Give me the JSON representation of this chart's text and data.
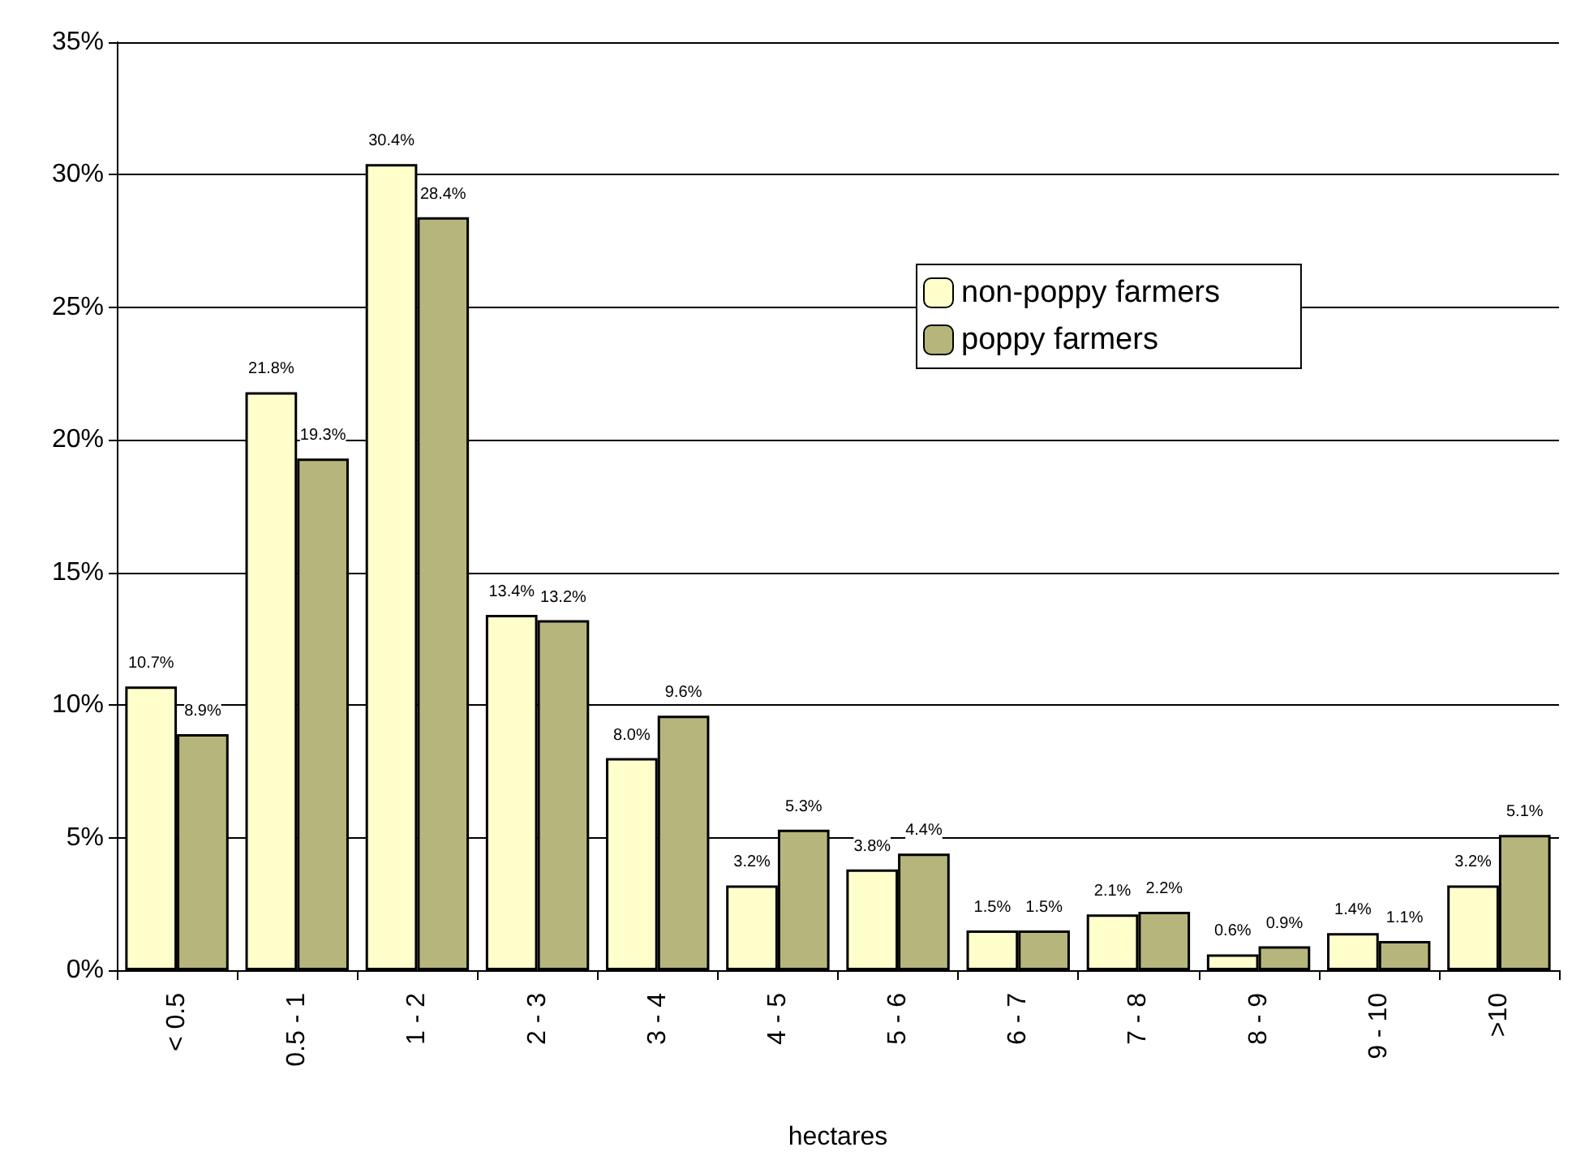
{
  "chart_data": {
    "type": "bar",
    "xlabel": "hectares",
    "categories": [
      "< 0.5",
      "0.5 - 1",
      "1 - 2",
      "2 - 3",
      "3 - 4",
      "4 - 5",
      "5 - 6",
      "6 - 7",
      "7 - 8",
      "8 - 9",
      "9 - 10",
      ">10"
    ],
    "series": [
      {
        "name": "non-poppy farmers",
        "color": "#ffffcc",
        "values": [
          10.7,
          21.8,
          30.4,
          13.4,
          8.0,
          3.2,
          3.8,
          1.5,
          2.1,
          0.6,
          1.4,
          3.2
        ],
        "value_labels": [
          "10.7%",
          "21.8%",
          "30.4%",
          "13.4%",
          "8.0%",
          "3.2%",
          "3.8%",
          "1.5%",
          "2.1%",
          "0.6%",
          "1.4%",
          "3.2%"
        ]
      },
      {
        "name": "poppy farmers",
        "color": "#b6b67c",
        "values": [
          8.9,
          19.3,
          28.4,
          13.2,
          9.6,
          5.3,
          4.4,
          1.5,
          2.2,
          0.9,
          1.1,
          5.1
        ],
        "value_labels": [
          "8.9%",
          "19.3%",
          "28.4%",
          "13.2%",
          "9.6%",
          "5.3%",
          "4.4%",
          "1.5%",
          "2.2%",
          "0.9%",
          "1.1%",
          "5.1%"
        ]
      }
    ],
    "ylim": [
      0,
      35
    ],
    "yticks": [
      {
        "value": 0,
        "label": "0%"
      },
      {
        "value": 5,
        "label": "5%"
      },
      {
        "value": 10,
        "label": "10%"
      },
      {
        "value": 15,
        "label": "15%"
      },
      {
        "value": 20,
        "label": "20%"
      },
      {
        "value": 25,
        "label": "25%"
      },
      {
        "value": 30,
        "label": "30%"
      },
      {
        "value": 35,
        "label": "35%"
      }
    ],
    "grid": "y",
    "legend": "top right"
  }
}
